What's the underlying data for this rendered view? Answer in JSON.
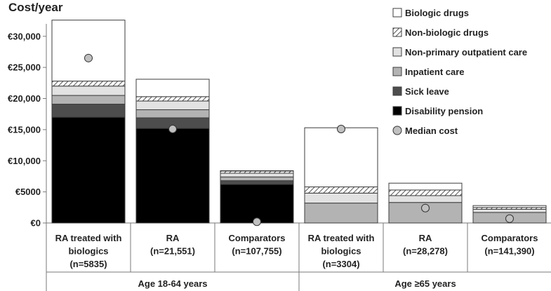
{
  "chart_data": {
    "type": "stacked-bar",
    "ylabel": "Cost/year",
    "ylim": [
      0,
      32000
    ],
    "yticks": [
      {
        "value": 0,
        "label": "€0"
      },
      {
        "value": 5000,
        "label": "€5000"
      },
      {
        "value": 10000,
        "label": "€10,000"
      },
      {
        "value": 15000,
        "label": "€15,000"
      },
      {
        "value": 20000,
        "label": "€20,000"
      },
      {
        "value": 25000,
        "label": "€25,000"
      },
      {
        "value": 30000,
        "label": "€30,000"
      }
    ],
    "categories": [
      [
        "RA treated with",
        "biologics",
        "(n=5835)"
      ],
      [
        "RA",
        "(n=21,551)"
      ],
      [
        "Comparators",
        "(n=107,755)"
      ],
      [
        "RA treated with",
        "biologics",
        "(n=3304)"
      ],
      [
        "RA",
        "(n=28,278)"
      ],
      [
        "Comparators",
        "(n=141,390)"
      ]
    ],
    "groups": [
      {
        "label": "Age 18-64 years",
        "categories": [
          0,
          1,
          2
        ]
      },
      {
        "label": "Age ≥65 years",
        "categories": [
          3,
          4,
          5
        ]
      }
    ],
    "series": [
      {
        "name": "Disability pension",
        "fill": "#000000",
        "values": [
          17000,
          15200,
          6200,
          0,
          0,
          0
        ]
      },
      {
        "name": "Sick leave",
        "fill": "#4d4d4d",
        "values": [
          2100,
          1700,
          600,
          0,
          0,
          0
        ]
      },
      {
        "name": "Inpatient care",
        "fill": "#b3b3b3",
        "values": [
          1400,
          1300,
          600,
          3200,
          3300,
          1700
        ]
      },
      {
        "name": "Non-primary outpatient care",
        "fill": "#e2e2e2",
        "values": [
          1500,
          1400,
          600,
          1600,
          1100,
          500
        ]
      },
      {
        "name": "Non-biologic drugs",
        "fill": "hatch",
        "values": [
          800,
          700,
          350,
          1000,
          900,
          300
        ]
      },
      {
        "name": "Biologic drugs",
        "fill": "#ffffff",
        "values": [
          9800,
          2800,
          50,
          9500,
          1100,
          300
        ]
      }
    ],
    "median": {
      "name": "Median cost",
      "fill": "#c0c0c0",
      "values": [
        26500,
        15100,
        200,
        15100,
        2400,
        700
      ]
    },
    "grid": false,
    "legend_position": "top-right"
  }
}
